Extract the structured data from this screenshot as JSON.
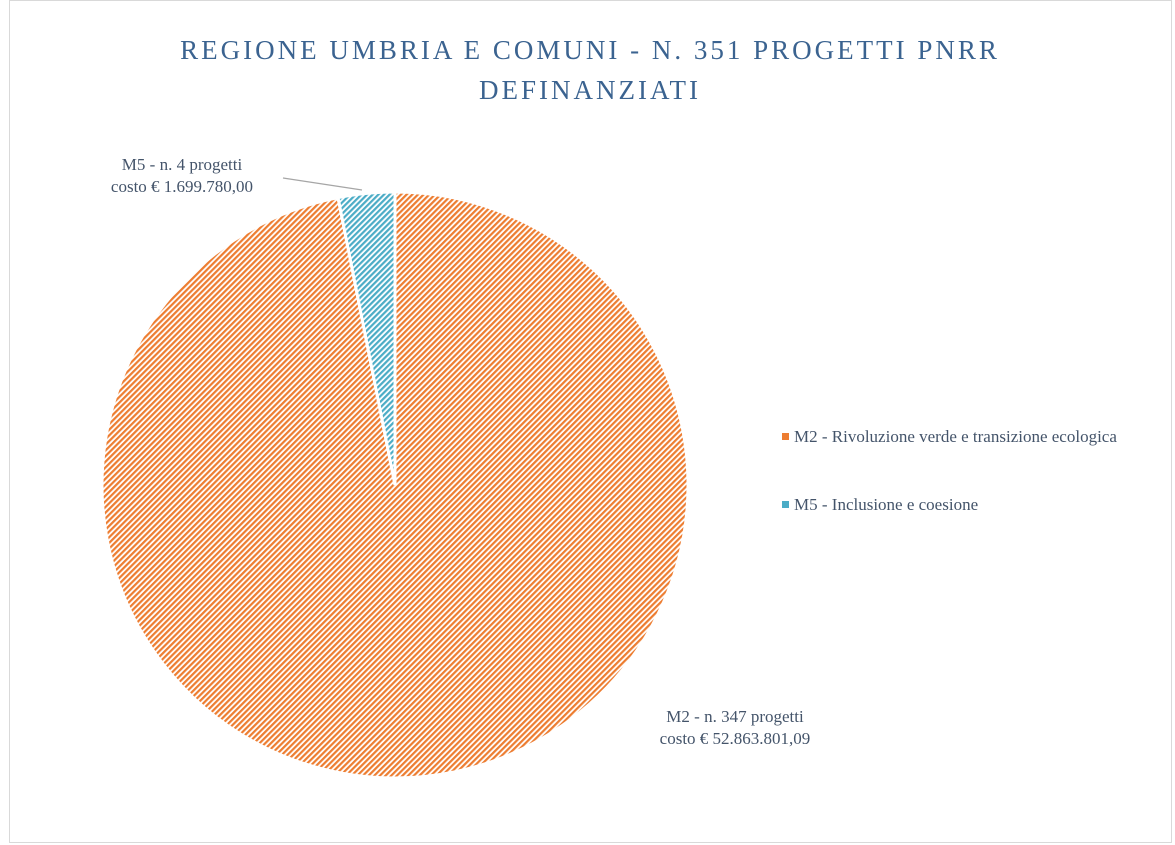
{
  "chart_data": {
    "type": "pie",
    "title": "REGIONE UMBRIA E COMUNI - N. 351 PROGETTI PNRR DEFINANZIATI",
    "categories": [
      "M2 - Rivoluzione verde e transizione ecologica",
      "M5 - Inclusione e coesione"
    ],
    "values": [
      52863801.09,
      1699780.0
    ],
    "value_labels": [
      [
        "M2 - n. 347 progetti",
        "costo € 52.863.801,09"
      ],
      [
        "M5 - n. 4 progetti",
        "costo € 1.699.780,00"
      ]
    ],
    "colors": [
      "#ed7d31",
      "#4bacc6"
    ],
    "legend": "right"
  }
}
